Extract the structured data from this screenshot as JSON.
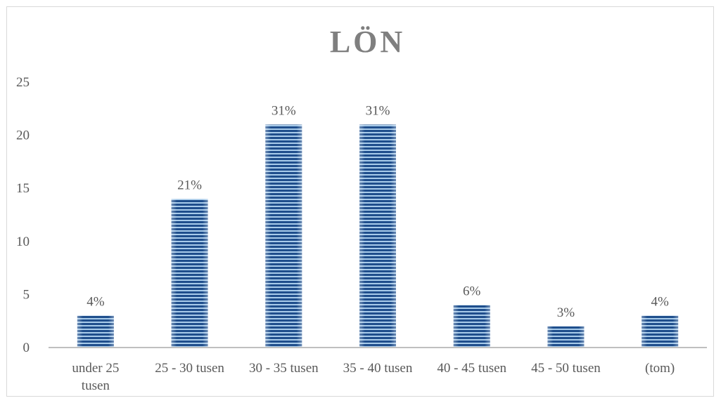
{
  "chart_data": {
    "type": "bar",
    "title": "LÖN",
    "categories": [
      [
        "under 25",
        "tusen"
      ],
      [
        "25 - 30 tusen"
      ],
      [
        "30 - 35 tusen"
      ],
      [
        "35 - 40 tusen"
      ],
      [
        "40 - 45 tusen"
      ],
      [
        "45 - 50 tusen"
      ],
      [
        "(tom)"
      ]
    ],
    "values": [
      3,
      14,
      21,
      21,
      4,
      2,
      3
    ],
    "data_labels": [
      "4%",
      "21%",
      "31%",
      "31%",
      "6%",
      "3%",
      "4%"
    ],
    "ylim": [
      0,
      25
    ],
    "yticks": [
      0,
      5,
      10,
      15,
      20,
      25
    ],
    "grid": false,
    "legend": "none",
    "colors": {
      "bar_dark": "#1f4e8c",
      "bar_light": "#9cc3e6",
      "axis": "#bfbfbf",
      "title": "#7f7f7f",
      "text": "#595959"
    }
  }
}
